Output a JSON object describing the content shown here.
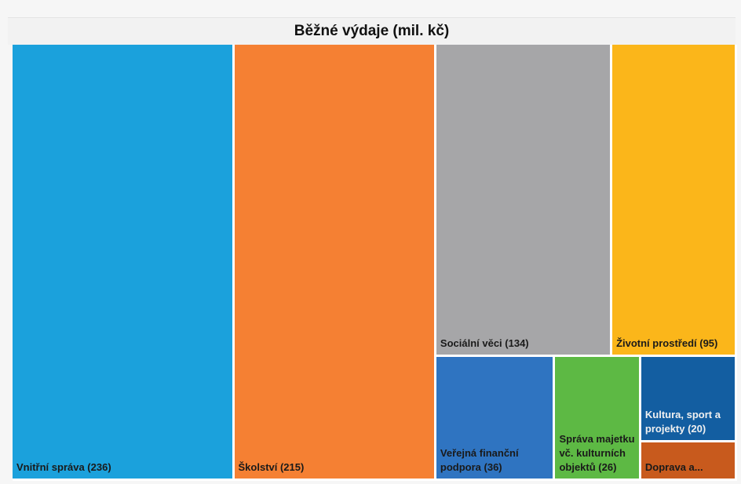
{
  "chart_data": {
    "type": "treemap",
    "title": "Běžné výdaje (mil. kč)",
    "items": [
      {
        "label": "Vnitřní správa (236)",
        "name": "Vnitřní správa",
        "value": 236,
        "color": "#1ba1dc",
        "text_color": "#1a1a1a"
      },
      {
        "label": "Školství (215)",
        "name": "Školství",
        "value": 215,
        "color": "#f58033",
        "text_color": "#1a1a1a"
      },
      {
        "label": "Sociální věci (134)",
        "name": "Sociální věci",
        "value": 134,
        "color": "#a6a6a8",
        "text_color": "#1a1a1a"
      },
      {
        "label": "Životní prostředí (95)",
        "name": "Životní prostředí",
        "value": 95,
        "color": "#fbb61a",
        "text_color": "#1a1a1a"
      },
      {
        "label": "Veřejná finanční podpora (36)",
        "name": "Veřejná finanční podpora",
        "value": 36,
        "color": "#2f74c1",
        "text_color": "#1a1a1a"
      },
      {
        "label": "Správa majetku vč. kulturních objektů (26)",
        "name": "Správa majetku vč. kulturních objektů",
        "value": 26,
        "color": "#5db944",
        "text_color": "#1a1a1a"
      },
      {
        "label": "Kultura, sport a projekty (20)",
        "name": "Kultura, sport a projekty",
        "value": 20,
        "color": "#135ea1",
        "text_color": "#f0f0f0"
      },
      {
        "label": "Doprava a...",
        "name": "Doprava a...",
        "value": 9,
        "color": "#c85a1d",
        "text_color": "#1a1a1a"
      }
    ]
  }
}
